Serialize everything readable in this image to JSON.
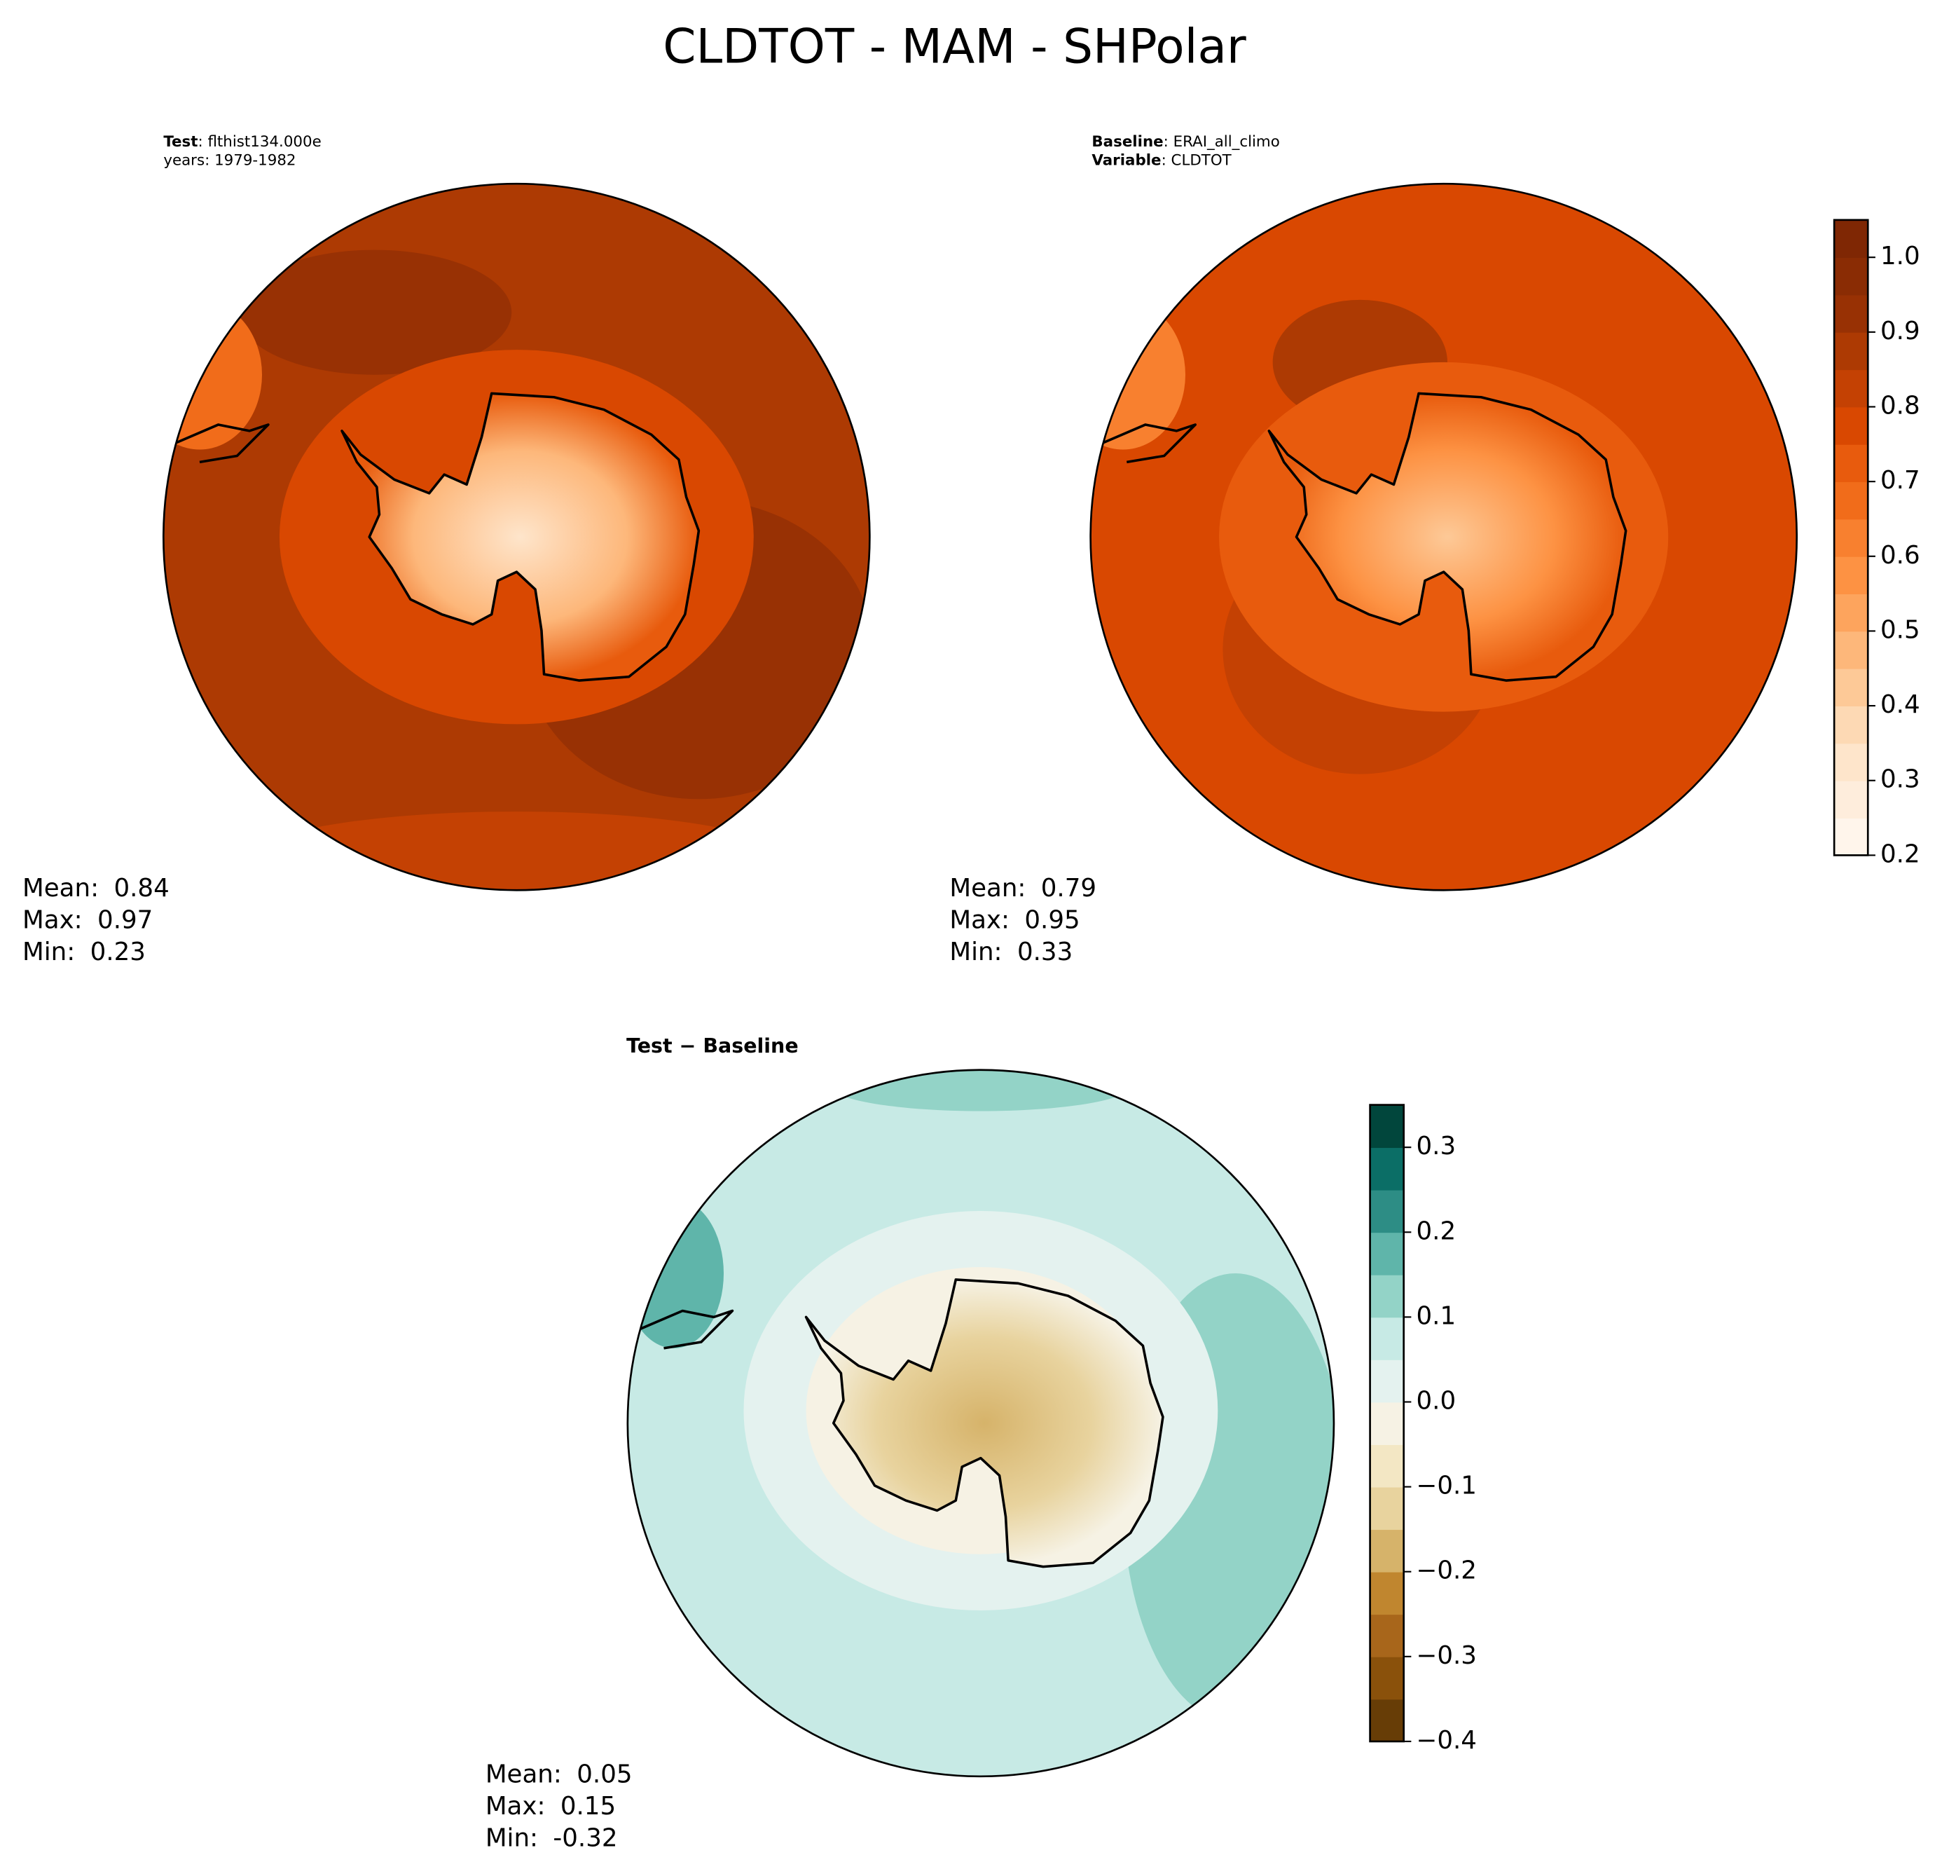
{
  "title": "CLDTOT - MAM - SHPolar",
  "panels": [
    {
      "header": [
        {
          "bold": "Test",
          "text": ": flthist134.000e"
        },
        {
          "text": "years: 1979-1982"
        }
      ],
      "stats": [
        {
          "label": "Mean:",
          "value": 0.84
        },
        {
          "label": "Max:",
          "value": 0.97
        },
        {
          "label": "Min:",
          "value": 0.23
        }
      ]
    },
    {
      "header": [
        {
          "bold": "Baseline",
          "text": ": ERAI_all_climo"
        },
        {
          "bold": "Variable",
          "text": ": CLDTOT"
        }
      ],
      "stats": [
        {
          "label": "Mean:",
          "value": 0.79
        },
        {
          "label": "Max:",
          "value": 0.95
        },
        {
          "label": "Min:",
          "value": 0.33
        }
      ]
    },
    {
      "header": [
        {
          "bold": "Test − Baseline"
        }
      ],
      "stats": [
        {
          "label": "Mean:",
          "value": 0.05
        },
        {
          "label": "Max:",
          "value": 0.15
        },
        {
          "label": "Min:",
          "value": -0.32
        }
      ]
    }
  ],
  "colorbars": [
    {
      "lim": [
        0.2,
        1.05
      ],
      "ticks": [
        0.2,
        0.3,
        0.4,
        0.5,
        0.6,
        0.7,
        0.8,
        0.9,
        {
          "value": 1,
          "label": "1.0"
        }
      ],
      "colors": [
        "#fff5eb",
        "#feeddc",
        "#fee5cb",
        "#fdd9b4",
        "#fdc997",
        "#fdb77a",
        "#fda45d",
        "#fd9243",
        "#f8802f",
        "#f16c1a",
        "#e85b0d",
        "#d94801",
        "#c44103",
        "#ad3a03",
        "#983104",
        "#8a2c04",
        "#7f2704"
      ]
    },
    {
      "lim": [
        -0.4,
        0.35
      ],
      "ticks": [
        {
          "value": -0.4,
          "label": "−0.4"
        },
        {
          "value": -0.3,
          "label": "−0.3"
        },
        {
          "value": -0.2,
          "label": "−0.2"
        },
        {
          "value": -0.1,
          "label": "−0.1"
        },
        {
          "value": 0,
          "label": "0.0"
        },
        0.1,
        0.2,
        0.3
      ],
      "colors": [
        "#673d06",
        "#8a510b",
        "#a8661b",
        "#c0862f",
        "#d6b36a",
        "#e8d39e",
        "#f3e7c4",
        "#f6f2e4",
        "#e4f2ef",
        "#c7eae5",
        "#93d3c7",
        "#5fb5aa",
        "#2d8d85",
        "#0b6e66",
        "#01463c"
      ]
    }
  ]
}
